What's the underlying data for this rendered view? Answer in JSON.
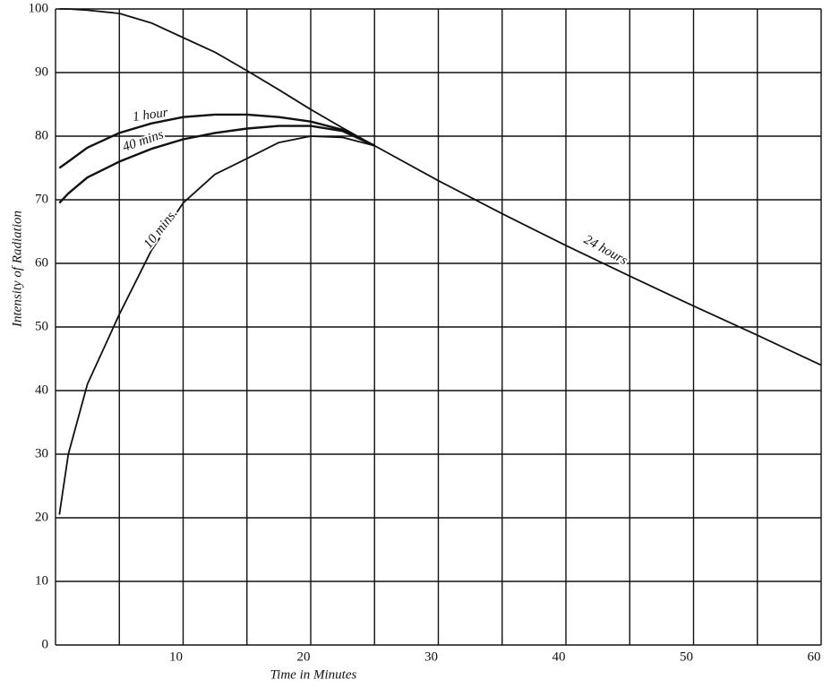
{
  "chart_data": {
    "type": "line",
    "x_label": "Time in Minutes",
    "y_label": "Intensity of Radiation",
    "x": [
      0.3,
      1,
      2.5,
      5,
      7.5,
      10,
      12.5,
      15,
      17.5,
      20,
      22.5,
      25,
      30,
      35,
      40,
      45,
      50,
      55,
      60
    ],
    "series": [
      {
        "name": "1 hour",
        "color": "#111111",
        "values": [
          75,
          76,
          78.2,
          80.5,
          82,
          83,
          83.4,
          83.4,
          83,
          82.3,
          81,
          78.5,
          null,
          null,
          null,
          null,
          null,
          null,
          null
        ]
      },
      {
        "name": "40 mins",
        "color": "#111111",
        "values": [
          69.5,
          71,
          73.5,
          76,
          78,
          79.5,
          80.5,
          81.2,
          81.6,
          81.6,
          80.8,
          78.5,
          null,
          null,
          null,
          null,
          null,
          null,
          null
        ]
      },
      {
        "name": "10 mins.",
        "color": "#111111",
        "values": [
          20.5,
          30,
          41,
          52,
          62,
          69.5,
          74,
          76.5,
          79,
          80,
          79.8,
          78.5,
          null,
          null,
          null,
          null,
          null,
          null,
          null
        ]
      },
      {
        "name": "24 hours",
        "color": "#111111",
        "values": [
          100,
          100,
          99.8,
          99.3,
          97.8,
          95.5,
          93.2,
          90.3,
          87.3,
          84.2,
          81.3,
          78.5,
          73,
          67.8,
          62.8,
          58,
          53.3,
          48.7,
          44
        ]
      }
    ],
    "xlim": [
      0,
      60
    ],
    "ylim": [
      0,
      100
    ],
    "xticks": [
      10,
      20,
      30,
      40,
      50,
      60
    ],
    "x_minor_ticks": [
      0,
      5,
      15,
      25,
      35,
      45,
      55
    ],
    "yticks": [
      0,
      10,
      20,
      30,
      40,
      50,
      60,
      70,
      80,
      90,
      100
    ],
    "grid": true
  }
}
